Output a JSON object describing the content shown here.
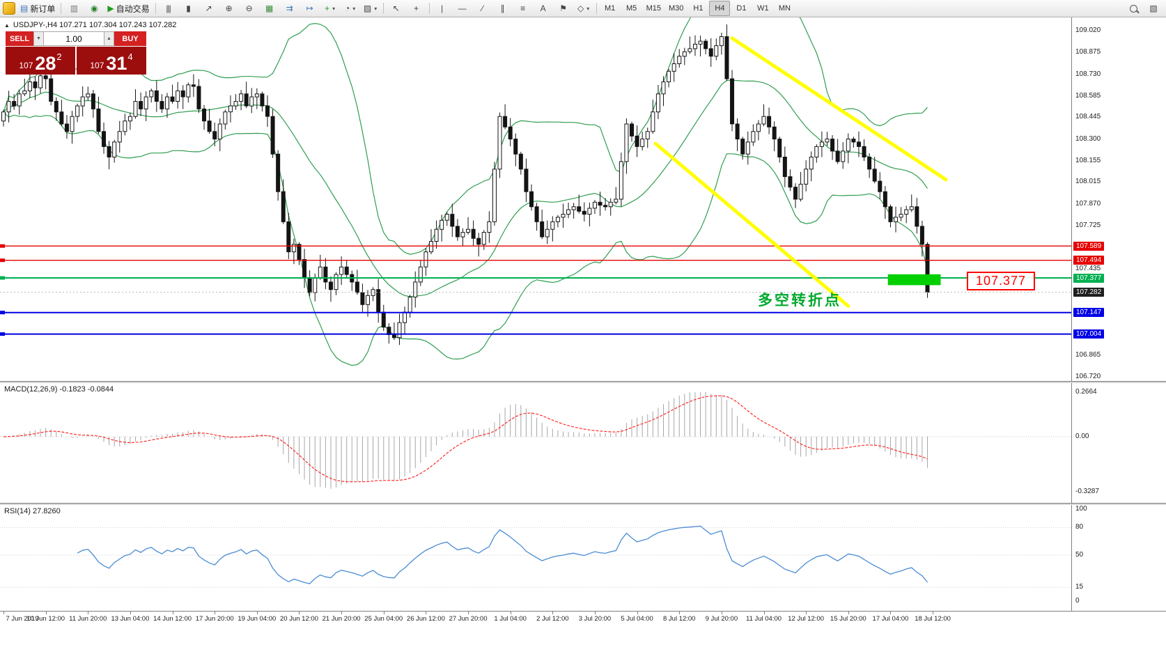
{
  "chart": {
    "symbol_ohlc": "USDJPY-,H4  107.271 107.304 107.243 107.282"
  },
  "toolbar": {
    "timeframes": [
      "M1",
      "M5",
      "M15",
      "M30",
      "H1",
      "H4",
      "D1",
      "W1",
      "MN"
    ],
    "active_timeframe": "H4",
    "items": [
      {
        "kind": "logo",
        "name": "mt4-logo"
      },
      {
        "kind": "button",
        "name": "new-order",
        "glyph": "▤",
        "glyph_color": "#3b72b8",
        "label": "新订单"
      },
      {
        "kind": "sep"
      },
      {
        "kind": "button",
        "name": "print",
        "glyph": "▥",
        "glyph_color": "#777777"
      },
      {
        "kind": "button",
        "name": "data-window",
        "glyph": "◉",
        "glyph_color": "#2a7d2a"
      },
      {
        "kind": "button",
        "name": "autotrading",
        "glyph": "▶",
        "glyph_color": "#1d9e1d",
        "label": "自动交易"
      },
      {
        "kind": "sep"
      },
      {
        "kind": "button",
        "name": "bar-chart-mode",
        "glyph": "|||"
      },
      {
        "kind": "button",
        "name": "candlestick-mode",
        "glyph": "▮"
      },
      {
        "kind": "button",
        "name": "line-chart-mode",
        "glyph": "↗"
      },
      {
        "kind": "button",
        "name": "zoom-in",
        "glyph": "⊕"
      },
      {
        "kind": "button",
        "name": "zoom-out",
        "glyph": "⊖"
      },
      {
        "kind": "button",
        "name": "tile-windows",
        "glyph": "▦",
        "glyph_color": "#3b8a3b"
      },
      {
        "kind": "button",
        "name": "auto-scroll",
        "glyph": "⇉",
        "glyph_color": "#3b72b8"
      },
      {
        "kind": "button",
        "name": "chart-shift",
        "glyph": "↦",
        "glyph_color": "#3b72b8"
      },
      {
        "kind": "button",
        "name": "indicators",
        "glyph": "+",
        "glyph_color": "#1d9e1d",
        "dropdown": true
      },
      {
        "kind": "button",
        "name": "periods",
        "glyph": "◔",
        "dropdown": true
      },
      {
        "kind": "button",
        "name": "templates",
        "glyph": "▨",
        "dropdown": true
      },
      {
        "kind": "sep"
      },
      {
        "kind": "button",
        "name": "cursor",
        "glyph": "↖"
      },
      {
        "kind": "button",
        "name": "crosshair",
        "glyph": "+"
      },
      {
        "kind": "sep"
      },
      {
        "kind": "button",
        "name": "vertical-line",
        "glyph": "|"
      },
      {
        "kind": "button",
        "name": "horizontal-line",
        "glyph": "—"
      },
      {
        "kind": "button",
        "name": "trendline",
        "glyph": "∕"
      },
      {
        "kind": "button",
        "name": "equidistant-channel",
        "glyph": "∥"
      },
      {
        "kind": "button",
        "name": "fibonacci",
        "glyph": "≡"
      },
      {
        "kind": "button",
        "name": "text",
        "glyph": "A"
      },
      {
        "kind": "button",
        "name": "text-label",
        "glyph": "⚑"
      },
      {
        "kind": "button",
        "name": "shapes",
        "glyph": "◇",
        "dropdown": true
      },
      {
        "kind": "sep"
      },
      {
        "kind": "timeframes"
      },
      {
        "kind": "spacer"
      },
      {
        "kind": "button",
        "name": "search",
        "search_icon": true
      },
      {
        "kind": "button",
        "name": "chart-layout",
        "glyph": "▧"
      }
    ]
  },
  "trade_panel": {
    "sell_label": "SELL",
    "buy_label": "BUY",
    "volume": "1.00",
    "sell_price": {
      "prefix": "107",
      "big": "28",
      "sup": "2"
    },
    "buy_price": {
      "prefix": "107",
      "big": "31",
      "sup": "4"
    }
  },
  "indicators": {
    "macd_label": "MACD(12,26,9) -0.1823 -0.0844",
    "rsi_label": "RSI(14) 27.8260"
  },
  "annotations": {
    "turning_point": "多空转折点",
    "price_label": "107.377"
  },
  "colors": {
    "bollinger": "#2f9e4f",
    "bull_candle": "#ffffff",
    "bear_candle": "#141414",
    "candle_outline": "#141414",
    "trendline": "#ffff00",
    "highlight": "#00cf00",
    "macd_hist": "#a6a6a6",
    "macd_signal": "#ff2a2a",
    "rsi_line": "#4a8bd4",
    "current_line": "#b8b8b8",
    "current_tag": "#1f1f1f"
  },
  "chart_data": {
    "type": "candlestick",
    "symbol": "USDJPY-",
    "timeframe": "H4",
    "ohlc_display": {
      "open": 107.271,
      "high": 107.304,
      "low": 107.243,
      "close": 107.282
    },
    "candles": {
      "first_open": 108.42,
      "closes": [
        108.48,
        108.55,
        108.52,
        108.6,
        108.62,
        108.68,
        108.64,
        108.72,
        108.7,
        108.55,
        108.48,
        108.4,
        108.35,
        108.45,
        108.52,
        108.58,
        108.6,
        108.5,
        108.35,
        108.25,
        108.18,
        108.28,
        108.35,
        108.42,
        108.45,
        108.55,
        108.5,
        108.58,
        108.62,
        108.55,
        108.5,
        108.58,
        108.55,
        108.62,
        108.58,
        108.66,
        108.65,
        108.5,
        108.42,
        108.35,
        108.3,
        108.4,
        108.48,
        108.52,
        108.55,
        108.6,
        108.52,
        108.58,
        108.6,
        108.52,
        108.45,
        108.2,
        107.95,
        107.75,
        107.55,
        107.6,
        107.5,
        107.38,
        107.28,
        107.38,
        107.45,
        107.35,
        107.3,
        107.4,
        107.45,
        107.4,
        107.35,
        107.28,
        107.2,
        107.26,
        107.3,
        107.15,
        107.05,
        107.0,
        106.98,
        107.08,
        107.15,
        107.25,
        107.35,
        107.45,
        107.55,
        107.62,
        107.7,
        107.76,
        107.8,
        107.72,
        107.65,
        107.68,
        107.7,
        107.64,
        107.6,
        107.68,
        107.75,
        108.1,
        108.45,
        108.38,
        108.3,
        108.2,
        108.1,
        107.95,
        107.85,
        107.75,
        107.65,
        107.7,
        107.75,
        107.78,
        107.8,
        107.83,
        107.85,
        107.82,
        107.8,
        107.84,
        107.88,
        107.86,
        107.85,
        107.88,
        107.9,
        108.15,
        108.4,
        108.32,
        108.25,
        108.3,
        108.35,
        108.48,
        108.6,
        108.68,
        108.75,
        108.8,
        108.85,
        108.88,
        108.9,
        108.93,
        108.95,
        108.9,
        108.85,
        108.92,
        108.98,
        108.7,
        108.4,
        108.3,
        108.2,
        108.28,
        108.35,
        108.4,
        108.45,
        108.38,
        108.3,
        108.18,
        108.05,
        107.98,
        107.9,
        108.0,
        108.1,
        108.18,
        108.25,
        108.28,
        108.3,
        108.22,
        108.15,
        108.22,
        108.3,
        108.28,
        108.25,
        108.18,
        108.1,
        108.02,
        107.95,
        107.85,
        107.75,
        107.78,
        107.8,
        107.83,
        107.85,
        107.72,
        107.6,
        107.282
      ]
    },
    "bollinger": {
      "period": 20,
      "deviation": 2
    },
    "levels": [
      {
        "price": 107.589,
        "color": "#e60000",
        "width": 1.4,
        "tag": "107.589"
      },
      {
        "price": 107.494,
        "color": "#e60000",
        "width": 1.4,
        "tag": "107.494"
      },
      {
        "price": 107.377,
        "color": "#00b050",
        "width": 2,
        "tag": "107.377"
      },
      {
        "price": 107.147,
        "color": "#0000e6",
        "width": 2,
        "tag": "107.147"
      },
      {
        "price": 107.004,
        "color": "#0000e6",
        "width": 2,
        "tag": "107.004"
      }
    ],
    "current_price": {
      "value": 107.282,
      "tag": "107.282"
    },
    "trendlines": [
      {
        "from_candle": 138,
        "from_price": 108.97,
        "to_candle": 178.5,
        "to_price": 108.03
      },
      {
        "from_candle": 123.5,
        "from_price": 108.27,
        "to_candle": 160,
        "to_price": 107.19
      }
    ],
    "highlight_box": {
      "from_candle": 167.5,
      "to_candle": 177.5,
      "price_top": 107.401,
      "price_bottom": 107.329
    },
    "price_axis": {
      "scale": [
        "109.020",
        "108.875",
        "108.730",
        "108.585",
        "108.445",
        "108.300",
        "108.155",
        "108.015",
        "107.870",
        "107.725",
        "107.435",
        "106.865",
        "106.720"
      ],
      "top_price": 109.02,
      "bottom_price": 106.72
    },
    "macd": {
      "fast": 12,
      "slow": 26,
      "signal": 9,
      "value": -0.1823,
      "signal_value": -0.0844,
      "axis": [
        {
          "text": "0.2664",
          "value": 0.2664
        },
        {
          "text": "0.00",
          "value": 0
        },
        {
          "text": "-0.3287",
          "value": -0.3287
        }
      ]
    },
    "rsi": {
      "period": 14,
      "value": 27.826,
      "axis": [
        {
          "text": "100",
          "value": 100
        },
        {
          "text": "80",
          "value": 80
        },
        {
          "text": "50",
          "value": 50
        },
        {
          "text": "15",
          "value": 15
        },
        {
          "text": "0",
          "value": 0
        }
      ],
      "dotted_levels": [
        80,
        50,
        15
      ]
    },
    "time_labels": [
      "7 Jun 2019",
      "10 Jun 12:00",
      "11 Jun 20:00",
      "13 Jun 04:00",
      "14 Jun 12:00",
      "17 Jun 20:00",
      "19 Jun 04:00",
      "20 Jun 12:00",
      "21 Jun 20:00",
      "25 Jun 04:00",
      "26 Jun 12:00",
      "27 Jun 20:00",
      "1 Jul 04:00",
      "2 Jul 12:00",
      "3 Jul 20:00",
      "5 Jul 04:00",
      "8 Jul 12:00",
      "9 Jul 20:00",
      "11 Jul 04:00",
      "12 Jul 12:00",
      "15 Jul 20:00",
      "17 Jul 04:00",
      "18 Jul 12:00"
    ]
  }
}
